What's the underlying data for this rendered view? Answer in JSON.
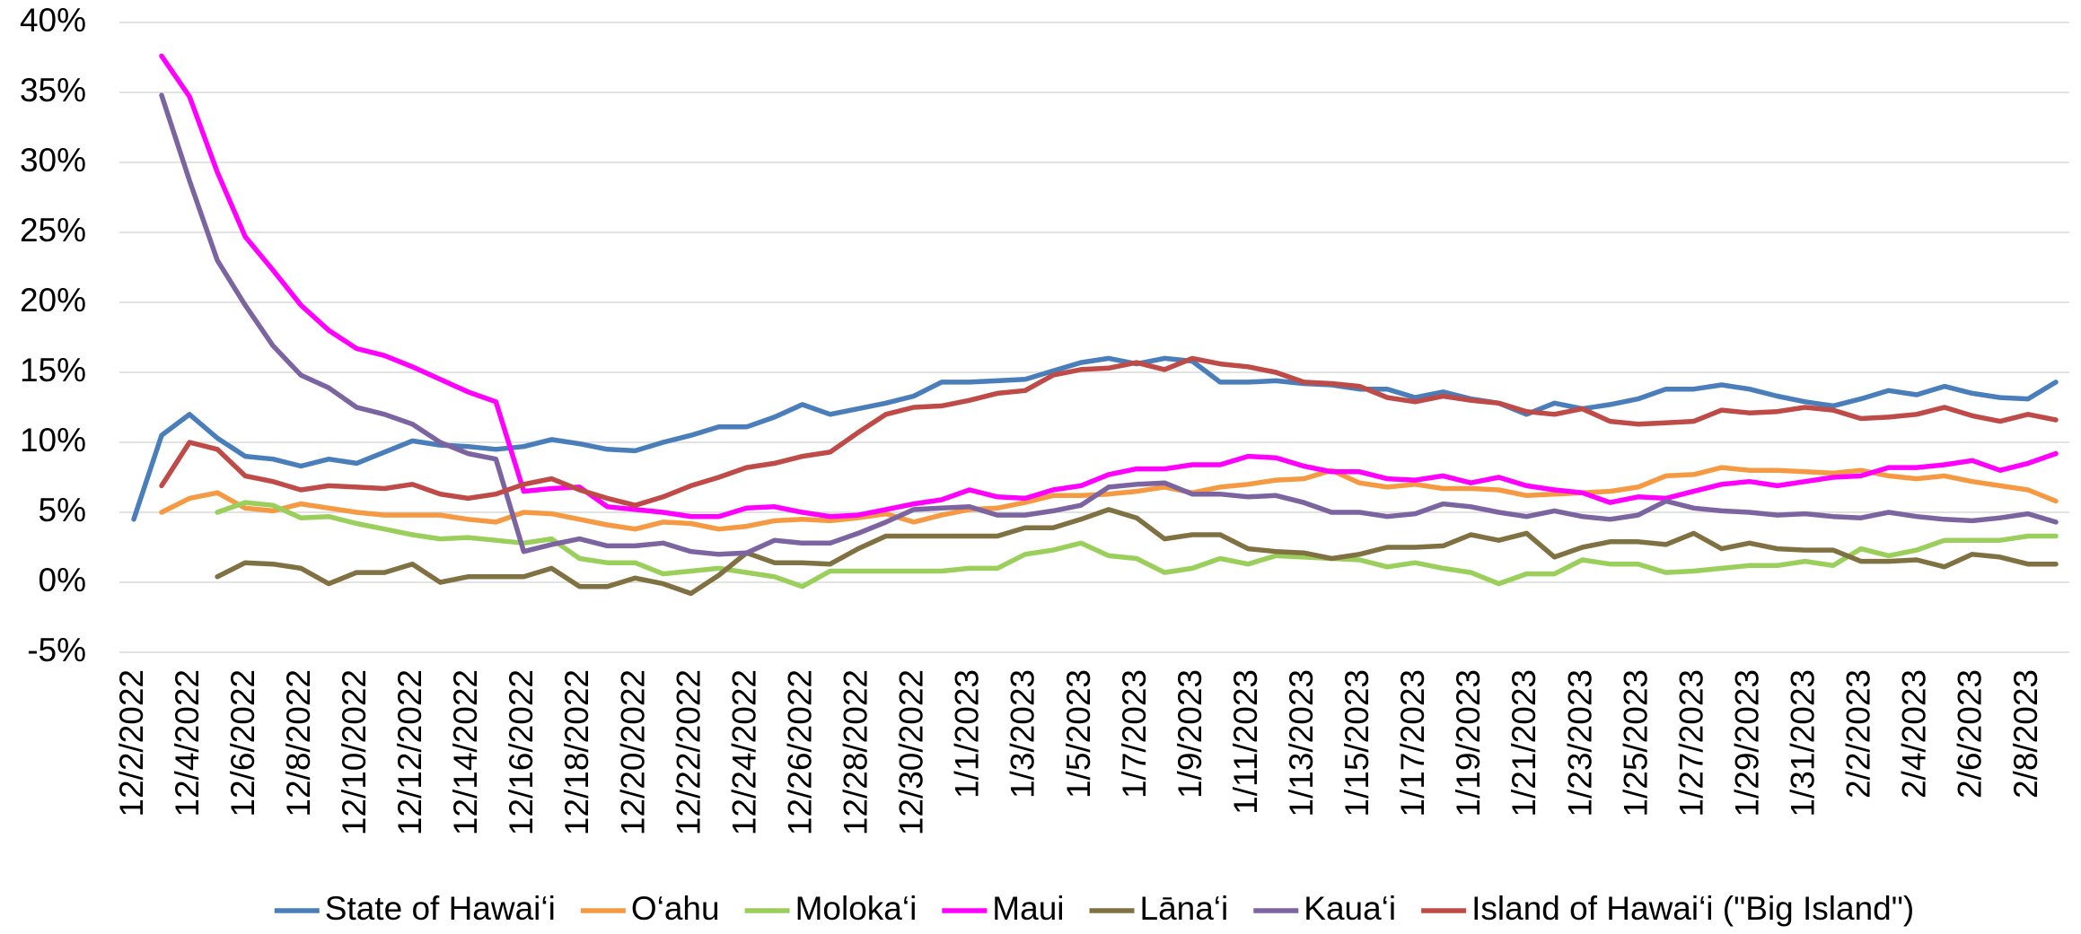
{
  "chart_data": {
    "type": "line",
    "categories": [
      "12/2/2022",
      null,
      "12/4/2022",
      null,
      "12/6/2022",
      null,
      "12/8/2022",
      null,
      "12/10/2022",
      null,
      "12/12/2022",
      null,
      "12/14/2022",
      null,
      "12/16/2022",
      null,
      "12/18/2022",
      null,
      "12/20/2022",
      null,
      "12/22/2022",
      null,
      "12/24/2022",
      null,
      "12/26/2022",
      null,
      "12/28/2022",
      null,
      "12/30/2022",
      null,
      "1/1/2023",
      null,
      "1/3/2023",
      null,
      "1/5/2023",
      null,
      "1/7/2023",
      null,
      "1/9/2023",
      null,
      "1/11/2023",
      null,
      "1/13/2023",
      null,
      "1/15/2023",
      null,
      "1/17/2023",
      null,
      "1/19/2023",
      null,
      "1/21/2023",
      null,
      "1/23/2023",
      null,
      "1/25/2023",
      null,
      "1/27/2023",
      null,
      "1/29/2023",
      null,
      "1/31/2023",
      null,
      "2/2/2023",
      null,
      "2/4/2023",
      null,
      "2/6/2023",
      null,
      "2/8/2023",
      null
    ],
    "series": [
      {
        "name": "State of Hawai‘i",
        "color": "#4a7ebb",
        "values": [
          4.5,
          10.5,
          12,
          10.3,
          9,
          8.8,
          8.3,
          8.8,
          8.5,
          9.3,
          10.1,
          9.8,
          9.7,
          9.5,
          9.7,
          10.2,
          9.9,
          9.5,
          9.4,
          10,
          10.5,
          11.1,
          11.1,
          11.8,
          12.7,
          12,
          12.4,
          12.8,
          13.3,
          14.3,
          14.3,
          14.4,
          14.5,
          15.1,
          15.7,
          16,
          15.6,
          16,
          15.8,
          14.3,
          14.3,
          14.4,
          14.2,
          14.1,
          13.8,
          13.8,
          13.2,
          13.6,
          13.1,
          12.8,
          12,
          12.8,
          12.4,
          12.7,
          13.1,
          13.8,
          13.8,
          14.1,
          13.8,
          13.3,
          12.9,
          12.6,
          13.1,
          13.7,
          13.4,
          14,
          13.5,
          13.2,
          13.1,
          14.3
        ]
      },
      {
        "name": "O‘ahu",
        "color": "#f59a43",
        "values": [
          null,
          5,
          6,
          6.4,
          5.3,
          5.1,
          5.6,
          5.3,
          5,
          4.8,
          4.8,
          4.8,
          4.5,
          4.3,
          5,
          4.9,
          4.5,
          4.1,
          3.8,
          4.3,
          4.2,
          3.8,
          4,
          4.4,
          4.5,
          4.4,
          4.6,
          4.9,
          4.3,
          4.8,
          5.2,
          5.3,
          5.7,
          6.2,
          6.2,
          6.3,
          6.5,
          6.8,
          6.4,
          6.8,
          7,
          7.3,
          7.4,
          8,
          7.1,
          6.8,
          7,
          6.7,
          6.7,
          6.6,
          6.2,
          6.3,
          6.4,
          6.5,
          6.8,
          7.6,
          7.7,
          8.2,
          8,
          8,
          7.9,
          7.8,
          8,
          7.6,
          7.4,
          7.6,
          7.2,
          6.9,
          6.6,
          5.8
        ]
      },
      {
        "name": "Moloka‘i",
        "color": "#9bcf5b",
        "values": [
          null,
          null,
          null,
          5,
          5.7,
          5.5,
          4.6,
          4.7,
          4.2,
          3.8,
          3.4,
          3.1,
          3.2,
          3,
          2.8,
          3.1,
          1.7,
          1.4,
          1.4,
          0.6,
          0.8,
          1,
          0.7,
          0.4,
          -0.3,
          0.8,
          0.8,
          0.8,
          0.8,
          0.8,
          1,
          1,
          2,
          2.3,
          2.8,
          1.9,
          1.7,
          0.7,
          1,
          1.7,
          1.3,
          1.9,
          1.8,
          1.7,
          1.6,
          1.1,
          1.4,
          1,
          0.7,
          -0.1,
          0.6,
          0.6,
          1.6,
          1.3,
          1.3,
          0.7,
          0.8,
          1,
          1.2,
          1.2,
          1.5,
          1.2,
          2.4,
          1.9,
          2.3,
          3,
          3,
          3,
          3.3,
          3.3
        ]
      },
      {
        "name": "Maui",
        "color": "#ff00ff",
        "values": [
          null,
          37.6,
          34.7,
          29.3,
          24.7,
          22.3,
          19.8,
          18,
          16.7,
          16.2,
          15.4,
          14.5,
          13.6,
          12.9,
          6.5,
          6.7,
          6.8,
          5.4,
          5.2,
          5,
          4.7,
          4.7,
          5.3,
          5.4,
          5,
          4.7,
          4.8,
          5.2,
          5.6,
          5.9,
          6.6,
          6.1,
          6,
          6.6,
          6.9,
          7.7,
          8.1,
          8.1,
          8.4,
          8.4,
          9,
          8.9,
          8.3,
          7.9,
          7.9,
          7.4,
          7.3,
          7.6,
          7.1,
          7.5,
          6.9,
          6.6,
          6.4,
          5.7,
          6.1,
          6,
          6.5,
          7,
          7.2,
          6.9,
          7.2,
          7.5,
          7.6,
          8.2,
          8.2,
          8.4,
          8.7,
          8,
          8.5,
          9.2
        ]
      },
      {
        "name": "Lāna‘i",
        "color": "#7f7141",
        "values": [
          null,
          null,
          null,
          0.4,
          1.4,
          1.3,
          1,
          -0.1,
          0.7,
          0.7,
          1.3,
          0,
          0.4,
          0.4,
          0.4,
          1,
          -0.3,
          -0.3,
          0.3,
          -0.1,
          -0.8,
          0.5,
          2.1,
          1.4,
          1.4,
          1.3,
          2.4,
          3.3,
          3.3,
          3.3,
          3.3,
          3.3,
          3.9,
          3.9,
          4.5,
          5.2,
          4.6,
          3.1,
          3.4,
          3.4,
          2.4,
          2.2,
          2.1,
          1.7,
          2,
          2.5,
          2.5,
          2.6,
          3.4,
          3,
          3.5,
          1.8,
          2.5,
          2.9,
          2.9,
          2.7,
          3.5,
          2.4,
          2.8,
          2.4,
          2.3,
          2.3,
          1.5,
          1.5,
          1.6,
          1.1,
          2,
          1.8,
          1.3,
          1.3
        ]
      },
      {
        "name": "Kaua‘i",
        "color": "#7b64a0",
        "values": [
          null,
          34.8,
          28.7,
          23,
          19.8,
          16.9,
          14.8,
          13.9,
          12.5,
          12,
          11.3,
          10,
          9.2,
          8.8,
          2.2,
          2.7,
          3.1,
          2.6,
          2.6,
          2.8,
          2.2,
          2,
          2.1,
          3,
          2.8,
          2.8,
          3.5,
          4.3,
          5.2,
          5.3,
          5.4,
          4.8,
          4.8,
          5.1,
          5.5,
          6.8,
          7,
          7.1,
          6.3,
          6.3,
          6.1,
          6.2,
          5.7,
          5,
          5,
          4.7,
          4.9,
          5.6,
          5.4,
          5,
          4.7,
          5.1,
          4.7,
          4.5,
          4.8,
          5.8,
          5.3,
          5.1,
          5,
          4.8,
          4.9,
          4.7,
          4.6,
          5,
          4.7,
          4.5,
          4.4,
          4.6,
          4.9,
          4.3
        ]
      },
      {
        "name": "Island of Hawai‘i (\"Big Island\")",
        "color": "#be4b48",
        "values": [
          null,
          6.9,
          10,
          9.5,
          7.6,
          7.2,
          6.6,
          6.9,
          6.8,
          6.7,
          7,
          6.3,
          6,
          6.3,
          7,
          7.4,
          6.6,
          6,
          5.5,
          6.1,
          6.9,
          7.5,
          8.2,
          8.5,
          9,
          9.3,
          10.7,
          12,
          12.5,
          12.6,
          13,
          13.5,
          13.7,
          14.8,
          15.2,
          15.3,
          15.7,
          15.2,
          16,
          15.6,
          15.4,
          15,
          14.3,
          14.2,
          14,
          13.2,
          12.9,
          13.3,
          13,
          12.8,
          12.2,
          12,
          12.4,
          11.5,
          11.3,
          11.4,
          11.5,
          12.3,
          12.1,
          12.2,
          12.5,
          12.3,
          11.7,
          11.8,
          12,
          12.5,
          11.9,
          11.5,
          12,
          11.6
        ]
      }
    ],
    "ylim": [
      -5,
      40
    ],
    "yticks": [
      {
        "value": -5,
        "label": "-5%"
      },
      {
        "value": 0,
        "label": "0%"
      },
      {
        "value": 5,
        "label": "5%"
      },
      {
        "value": 10,
        "label": "10%"
      },
      {
        "value": 15,
        "label": "15%"
      },
      {
        "value": 20,
        "label": "20%"
      },
      {
        "value": 25,
        "label": "25%"
      },
      {
        "value": 30,
        "label": "30%"
      },
      {
        "value": 35,
        "label": "35%"
      },
      {
        "value": 40,
        "label": "40%"
      }
    ],
    "grid": true,
    "legend": "bottom"
  }
}
